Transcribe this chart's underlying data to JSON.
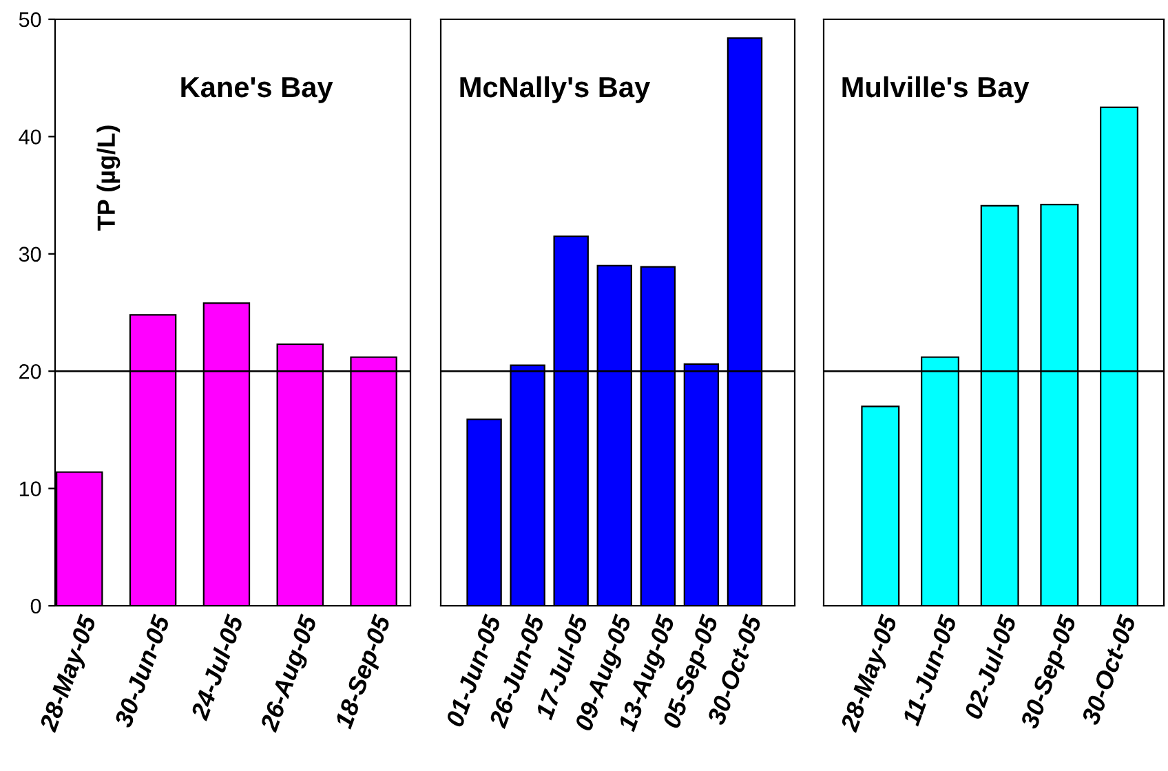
{
  "chart_data": [
    {
      "type": "bar",
      "title": "Kane's Bay",
      "ylabel": "TP (µg/L)",
      "categories": [
        "28-May-05",
        "30-Jun-05",
        "24-Jul-05",
        "26-Aug-05",
        "18-Sep-05"
      ],
      "values": [
        11.4,
        24.8,
        25.8,
        22.3,
        21.2
      ],
      "color": "#ff00ff",
      "ylim": [
        0,
        50
      ],
      "yticks": [
        0,
        10,
        20,
        30,
        40,
        50
      ],
      "ref_lines": [
        {
          "axis": "y",
          "value": 20,
          "color": "#000000"
        }
      ],
      "grid": false,
      "legend": false
    },
    {
      "type": "bar",
      "title": "McNally's Bay",
      "categories": [
        "01-Jun-05",
        "26-Jun-05",
        "17-Jul-05",
        "09-Aug-05",
        "13-Aug-05",
        "05-Sep-05",
        "30-Oct-05"
      ],
      "values": [
        15.9,
        20.5,
        31.5,
        29.0,
        28.9,
        20.6,
        48.4
      ],
      "color": "#0000ff",
      "ylim": [
        0,
        50
      ],
      "tick_labels": "x",
      "ref_lines": [
        {
          "axis": "y",
          "value": 20,
          "color": "#000000"
        }
      ],
      "grid": false,
      "legend": false
    },
    {
      "type": "bar",
      "title": "Mulville's Bay",
      "categories": [
        "28-May-05",
        "11-Jun-05",
        "02-Jul-05",
        "30-Sep-05",
        "30-Oct-05"
      ],
      "values": [
        17.0,
        21.2,
        34.1,
        34.2,
        42.5
      ],
      "color": "#00ffff",
      "ylim": [
        0,
        50
      ],
      "tick_labels": "x",
      "ref_lines": [
        {
          "axis": "y",
          "value": 20,
          "color": "#000000"
        }
      ],
      "grid": false,
      "legend": false
    }
  ]
}
